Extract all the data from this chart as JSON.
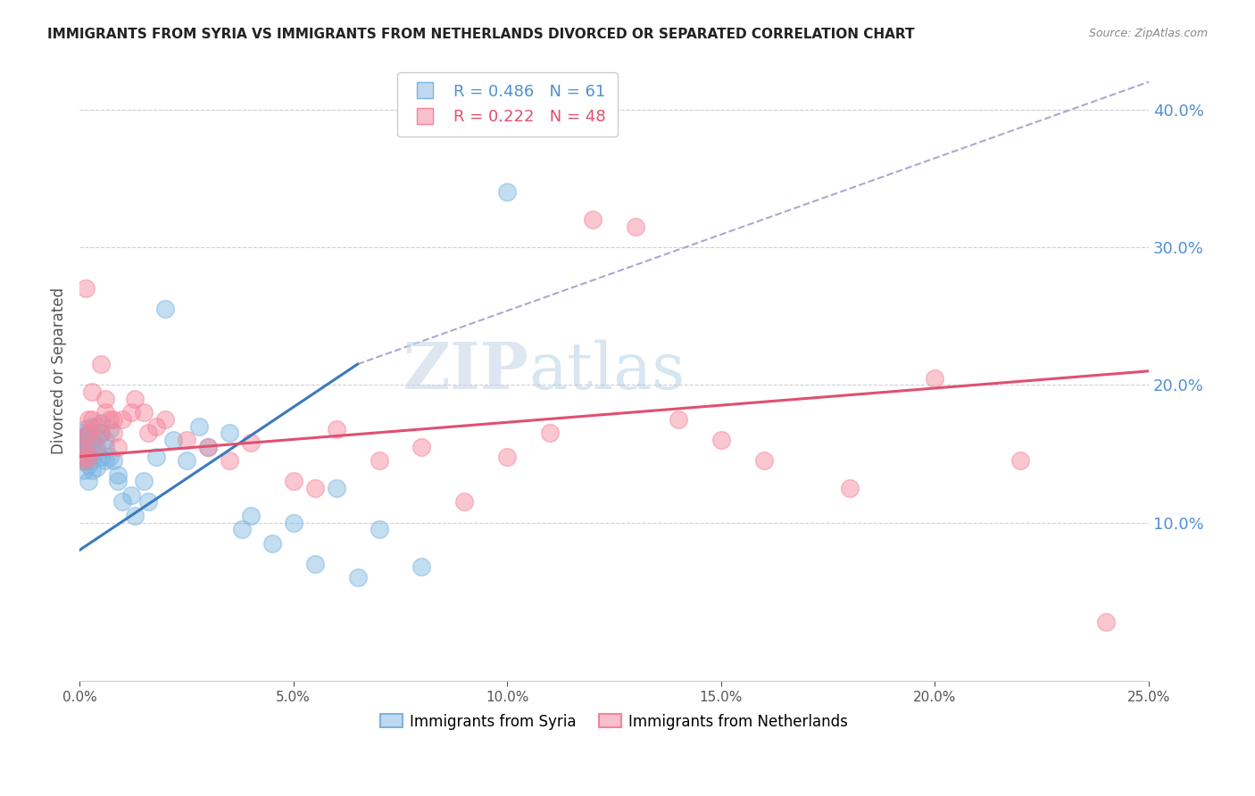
{
  "title": "IMMIGRANTS FROM SYRIA VS IMMIGRANTS FROM NETHERLANDS DIVORCED OR SEPARATED CORRELATION CHART",
  "source": "Source: ZipAtlas.com",
  "ylabel": "Divorced or Separated",
  "legend_syria": "Immigrants from Syria",
  "legend_netherlands": "Immigrants from Netherlands",
  "R_syria": 0.486,
  "N_syria": 61,
  "R_netherlands": 0.222,
  "N_netherlands": 48,
  "color_syria": "#7ab4e0",
  "color_netherlands": "#f4849a",
  "xlim": [
    0.0,
    0.25
  ],
  "ylim": [
    -0.015,
    0.435
  ],
  "x_ticks": [
    0.0,
    0.05,
    0.1,
    0.15,
    0.2,
    0.25
  ],
  "y_ticks_right": [
    0.1,
    0.2,
    0.3,
    0.4
  ],
  "watermark": "ZIPatlas",
  "syria_x": [
    0.0005,
    0.0005,
    0.0008,
    0.001,
    0.001,
    0.001,
    0.001,
    0.001,
    0.0012,
    0.0012,
    0.0015,
    0.0015,
    0.0015,
    0.002,
    0.002,
    0.002,
    0.002,
    0.002,
    0.002,
    0.0025,
    0.003,
    0.003,
    0.003,
    0.003,
    0.003,
    0.004,
    0.004,
    0.004,
    0.005,
    0.005,
    0.005,
    0.006,
    0.006,
    0.006,
    0.007,
    0.007,
    0.008,
    0.009,
    0.009,
    0.01,
    0.012,
    0.013,
    0.015,
    0.016,
    0.018,
    0.02,
    0.022,
    0.025,
    0.028,
    0.03,
    0.035,
    0.038,
    0.04,
    0.045,
    0.05,
    0.055,
    0.06,
    0.065,
    0.07,
    0.08,
    0.1
  ],
  "syria_y": [
    0.145,
    0.155,
    0.152,
    0.148,
    0.158,
    0.162,
    0.165,
    0.138,
    0.15,
    0.145,
    0.168,
    0.155,
    0.162,
    0.15,
    0.158,
    0.165,
    0.142,
    0.13,
    0.148,
    0.16,
    0.155,
    0.17,
    0.145,
    0.138,
    0.16,
    0.152,
    0.162,
    0.14,
    0.148,
    0.165,
    0.172,
    0.155,
    0.145,
    0.16,
    0.148,
    0.168,
    0.145,
    0.135,
    0.13,
    0.115,
    0.12,
    0.105,
    0.13,
    0.115,
    0.148,
    0.255,
    0.16,
    0.145,
    0.17,
    0.155,
    0.165,
    0.095,
    0.105,
    0.085,
    0.1,
    0.07,
    0.125,
    0.06,
    0.095,
    0.068,
    0.34
  ],
  "netherlands_x": [
    0.0005,
    0.001,
    0.001,
    0.0012,
    0.0015,
    0.002,
    0.002,
    0.002,
    0.003,
    0.003,
    0.004,
    0.004,
    0.005,
    0.005,
    0.006,
    0.006,
    0.007,
    0.008,
    0.008,
    0.009,
    0.01,
    0.012,
    0.013,
    0.015,
    0.016,
    0.018,
    0.02,
    0.025,
    0.03,
    0.035,
    0.04,
    0.05,
    0.055,
    0.06,
    0.07,
    0.08,
    0.09,
    0.1,
    0.11,
    0.12,
    0.13,
    0.14,
    0.15,
    0.16,
    0.18,
    0.2,
    0.22,
    0.24
  ],
  "netherlands_y": [
    0.148,
    0.155,
    0.162,
    0.145,
    0.27,
    0.165,
    0.175,
    0.148,
    0.175,
    0.195,
    0.155,
    0.17,
    0.165,
    0.215,
    0.18,
    0.19,
    0.175,
    0.165,
    0.175,
    0.155,
    0.175,
    0.18,
    0.19,
    0.18,
    0.165,
    0.17,
    0.175,
    0.16,
    0.155,
    0.145,
    0.158,
    0.13,
    0.125,
    0.168,
    0.145,
    0.155,
    0.115,
    0.148,
    0.165,
    0.32,
    0.315,
    0.175,
    0.16,
    0.145,
    0.125,
    0.205,
    0.145,
    0.028
  ],
  "blue_line_x": [
    0.0,
    0.065
  ],
  "blue_line_y": [
    0.08,
    0.215
  ],
  "dashed_line_x": [
    0.065,
    0.25
  ],
  "dashed_line_y": [
    0.215,
    0.42
  ],
  "pink_line_x": [
    0.0,
    0.25
  ],
  "pink_line_y": [
    0.148,
    0.21
  ]
}
